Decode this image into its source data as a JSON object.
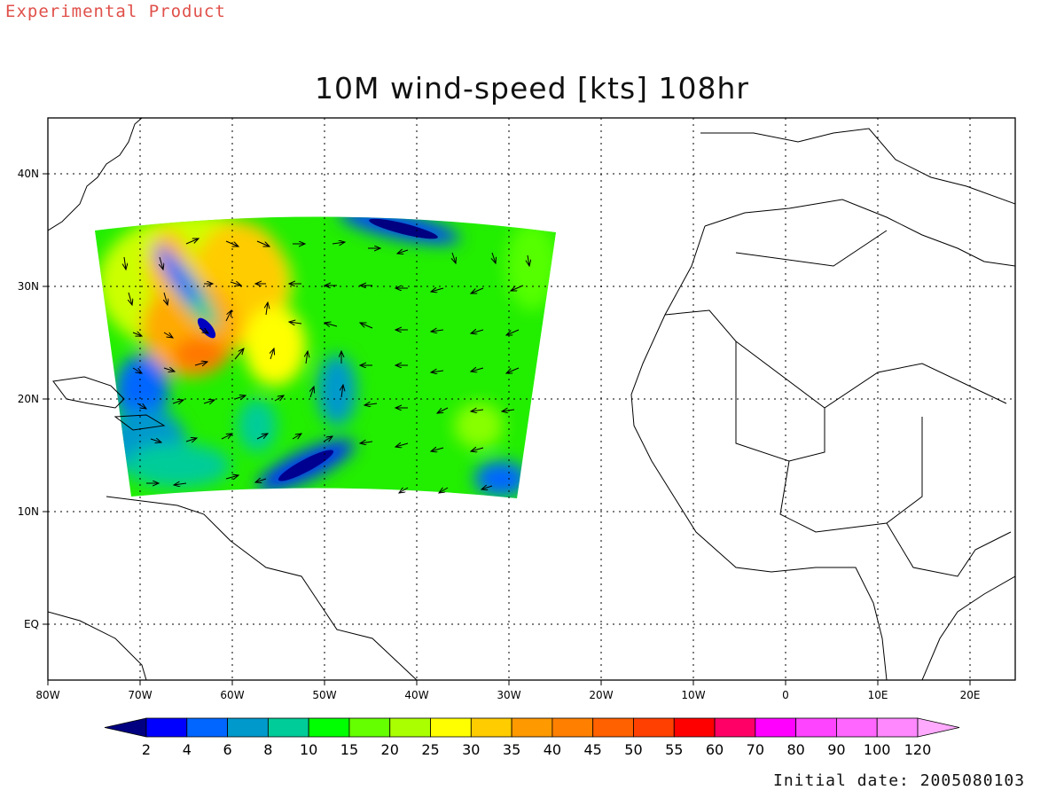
{
  "header": {
    "product_label": "Experimental Product"
  },
  "map": {
    "title": "10M wind-speed [kts] 108hr",
    "lon_labels": [
      "80W",
      "70W",
      "60W",
      "50W",
      "40W",
      "30W",
      "20W",
      "10W",
      "0",
      "10E",
      "20E"
    ],
    "lat_labels": [
      "40N",
      "30N",
      "20N",
      "10N",
      "EQ"
    ],
    "lon_range_deg": [
      -80,
      25
    ],
    "lat_range_deg": [
      -5,
      45
    ],
    "grid": "dotted",
    "projection": "lat-lon"
  },
  "colorbar": {
    "labels": [
      "2",
      "4",
      "6",
      "8",
      "10",
      "15",
      "20",
      "25",
      "30",
      "35",
      "40",
      "45",
      "50",
      "55",
      "60",
      "70",
      "80",
      "90",
      "100",
      "120"
    ],
    "colors": [
      "#000080",
      "#0000ff",
      "#0066ff",
      "#0099cc",
      "#00cc99",
      "#00ff00",
      "#66ff00",
      "#aaff00",
      "#ffff00",
      "#ffcc00",
      "#ff9900",
      "#ff8000",
      "#ff6000",
      "#ff4000",
      "#ff0000",
      "#ff0066",
      "#ff00ff",
      "#ff44ff",
      "#ff66ff",
      "#ff88ff",
      "#ffaaff"
    ]
  },
  "footer": {
    "initial_date": "Initial date: 2005080103"
  },
  "colors": {
    "product_label": "#e0504a"
  }
}
